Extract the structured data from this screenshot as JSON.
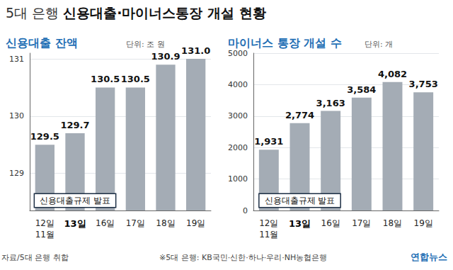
{
  "title": "5대 은행 신용대출·마이너스통장 개설 현황",
  "source": "자료/5대 은행 취합",
  "note": "※5대 은행: KB국민·신한·하나·우리·NH농협은행",
  "credit": "연합뉴스",
  "chart_data": [
    {
      "type": "bar",
      "title": "신용대출 잔액",
      "unit": "단위: 조 원",
      "categories": [
        "12일\n11월",
        "13일",
        "16일",
        "17일",
        "18일",
        "19일"
      ],
      "values": [
        129.5,
        129.7,
        130.5,
        130.5,
        130.9,
        131.0
      ],
      "value_labels": [
        "129.5",
        "129.7",
        "130.5",
        "130.5",
        "130.9",
        "131.0"
      ],
      "color": "#a4acb5",
      "ylim": [
        128.35,
        131.1
      ],
      "yticks": [
        129,
        130,
        131
      ],
      "grid": true,
      "data_labels": true,
      "annotations": [
        {
          "text": "신용대출규제 발표",
          "category": "13일"
        }
      ]
    },
    {
      "type": "bar",
      "title": "마이너스 통장 개설 수",
      "unit": "단위: 개",
      "categories": [
        "12일\n11월",
        "13일",
        "16일",
        "17일",
        "18일",
        "19일"
      ],
      "values": [
        1931,
        2774,
        3163,
        3584,
        4082,
        3753
      ],
      "value_labels": [
        "1,931",
        "2,774",
        "3,163",
        "3,584",
        "4,082",
        "3,753"
      ],
      "color": "#a4acb5",
      "ylim": [
        0,
        5000
      ],
      "yticks": [
        0,
        1000,
        2000,
        3000,
        4000,
        5000
      ],
      "grid": true,
      "data_labels": true,
      "annotations": [
        {
          "text": "신용대출규제 발표",
          "category": "13일"
        }
      ]
    }
  ]
}
